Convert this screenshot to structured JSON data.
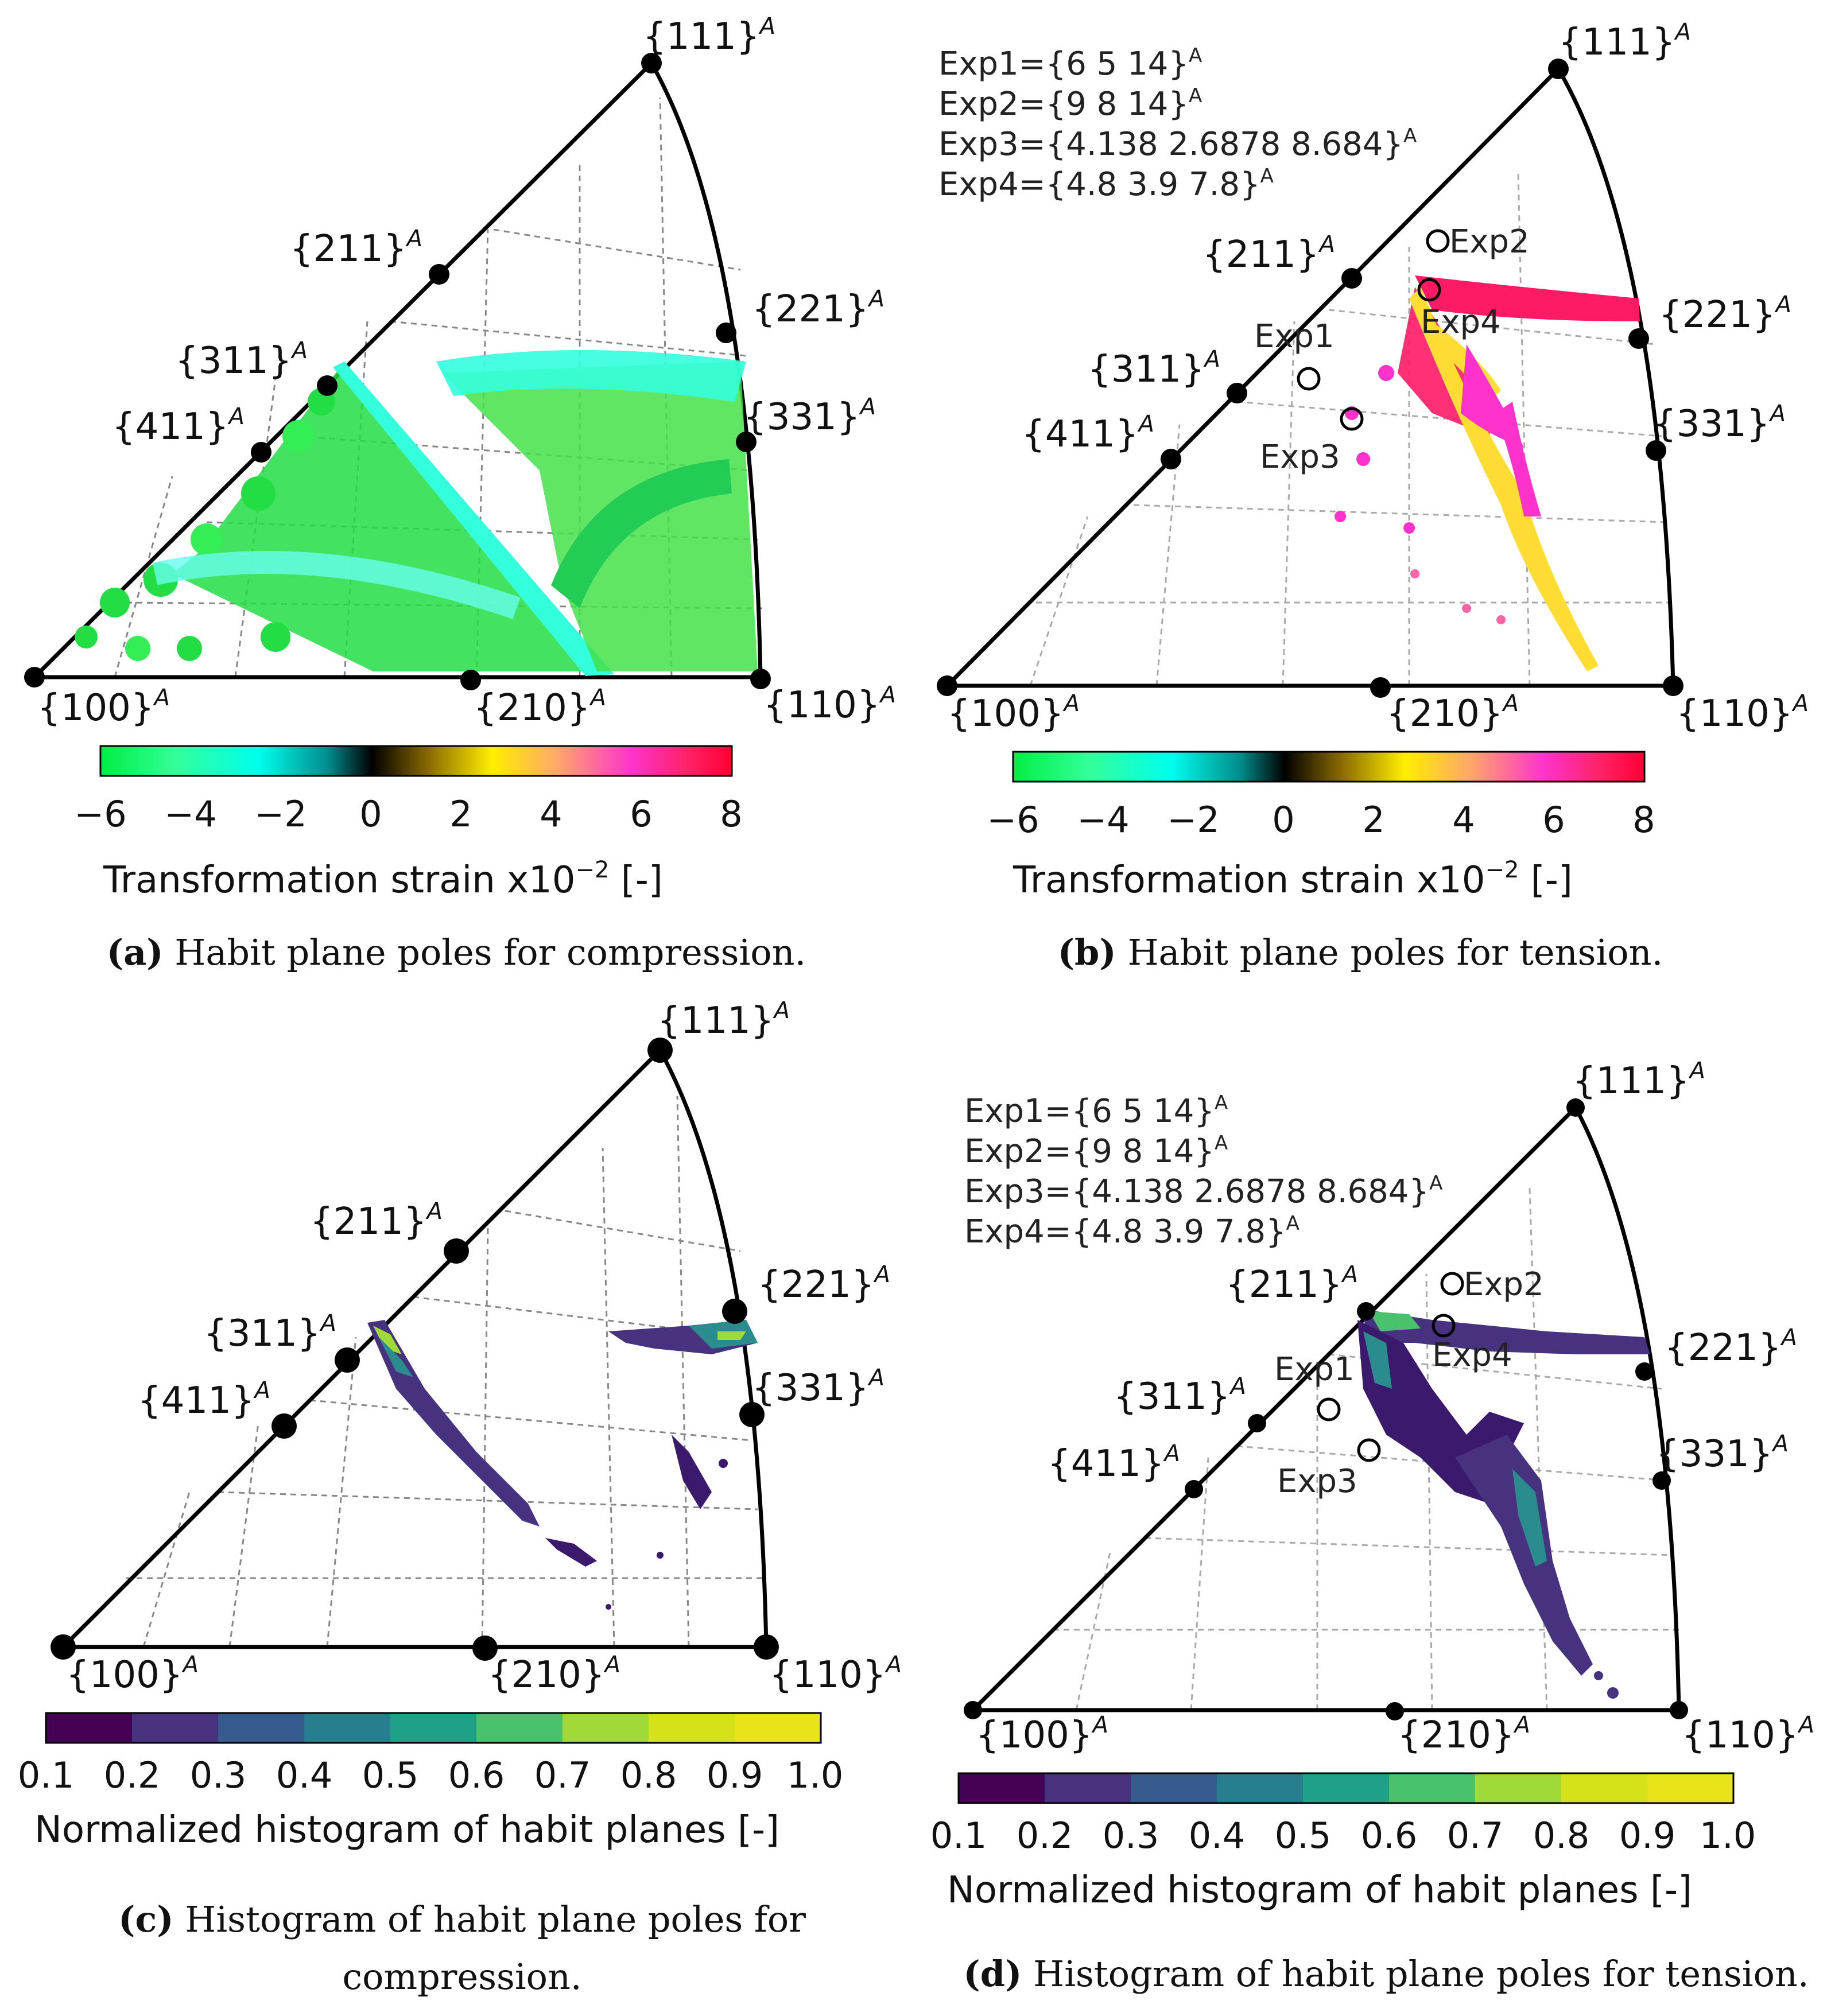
{
  "poles": {
    "p111": "{111}",
    "p211": "{211}",
    "p221": "{221}",
    "p311": "{311}",
    "p331": "{331}",
    "p411": "{411}",
    "p100": "{100}",
    "p210": "{210}",
    "p110": "{110}",
    "sup": "A"
  },
  "colorbar_strain": {
    "ticks": [
      "−6",
      "−4",
      "−2",
      "0",
      "2",
      "4",
      "6",
      "8"
    ],
    "label": "Transformation strain x10",
    "label_exp": "−2",
    "label_tail": " [-]",
    "colors": [
      "#00ee44",
      "#33ff99",
      "#00ffee",
      "#008c8c",
      "#000000",
      "#8a6a00",
      "#ffee00",
      "#ffaa66",
      "#ff33cc",
      "#ff2266",
      "#ff0033"
    ]
  },
  "colorbar_hist": {
    "ticks": [
      "0.1",
      "0.2",
      "0.3",
      "0.4",
      "0.5",
      "0.6",
      "0.7",
      "0.8",
      "0.9",
      "1.0"
    ],
    "label": "Normalized histogram of habit planes [-]",
    "colors": [
      "#440154",
      "#46327e",
      "#365c8d",
      "#277f8e",
      "#1fa187",
      "#4ac16d",
      "#a0da39",
      "#fde725",
      "#e8e419"
    ]
  },
  "experiments": {
    "exp1": "Exp1={6 5 14}",
    "exp2": "Exp2={9 8 14}",
    "exp3": "Exp3={4.138 2.6878 8.684}",
    "exp4": "Exp4={4.8 3.9  7.8}",
    "sup": "A",
    "labels": [
      "Exp1",
      "Exp2",
      "Exp3",
      "Exp4"
    ]
  },
  "captions": {
    "a_bold": "(a)",
    "a_text": " Habit plane poles for compression.",
    "b_bold": "(b)",
    "b_text": " Habit plane poles for tension.",
    "c_bold": "(c)",
    "c_text": " Histogram of habit plane poles for compression.",
    "d_bold": "(d)",
    "d_text": " Histogram of habit plane poles for tension."
  },
  "colors": {
    "compression_points": "#22dd44",
    "compression_cyan": "#33ffdd",
    "tension_points": "#ff1a66",
    "tension_magenta": "#ff33cc",
    "tension_yellow": "#ffdd33",
    "hist_dark": "#3b1a6e",
    "hist_teal": "#2a8c8c"
  }
}
